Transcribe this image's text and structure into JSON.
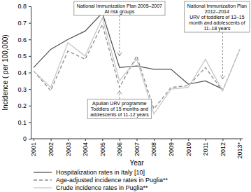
{
  "chart_data": {
    "type": "line",
    "x_label": "Year",
    "y_label": "Incidence ( per 100,000)",
    "categories": [
      "2001",
      "2002",
      "2003",
      "2004",
      "2005",
      "2006",
      "2007",
      "2008",
      "2009",
      "2010",
      "2011",
      "2012",
      "2013*"
    ],
    "series": [
      {
        "name": "Hospitalization rates in Italy [10]",
        "color": "#555555",
        "line_style": "solid",
        "values": [
          0.43,
          0.54,
          0.6,
          0.65,
          0.76,
          0.43,
          0.44,
          0.42,
          0.42,
          0.33,
          0.35,
          0.3,
          null
        ]
      },
      {
        "name": "Age-adjusted incidence rates in Puglia**",
        "color": "#8c8c8c",
        "line_style": "dashed",
        "values": [
          0.41,
          0.29,
          0.53,
          0.48,
          0.69,
          0.31,
          0.5,
          0.18,
          0.31,
          0.32,
          0.43,
          0.29,
          0.54
        ]
      },
      {
        "name": "Crude incidence rates in Puglia**",
        "color": "#c8c8c8",
        "line_style": "solid",
        "values": [
          0.41,
          0.31,
          0.58,
          0.5,
          0.73,
          0.35,
          0.48,
          0.15,
          0.3,
          0.31,
          0.48,
          0.29,
          0.54
        ]
      }
    ],
    "ylim": [
      0,
      0.8
    ],
    "yticks": [
      0,
      0.1,
      0.2,
      0.3,
      0.4,
      0.5,
      0.6,
      0.7,
      0.8
    ],
    "grid": false,
    "legend": "bottom",
    "annotations": [
      {
        "x": "2006",
        "lines": [
          "National Immunization Plan 2005–2007",
          "At risk groups"
        ]
      },
      {
        "x": "2012",
        "lines": [
          "National Immunization Plan",
          "2012–2014",
          "URV of toddlers of 13–15",
          "month and adolescents of",
          "11–18 years"
        ]
      },
      {
        "x": "2006",
        "lines": [
          "Apulian URV programme",
          "Toddlers of 15 months and",
          "adolescents of 11-12 years"
        ]
      }
    ]
  }
}
